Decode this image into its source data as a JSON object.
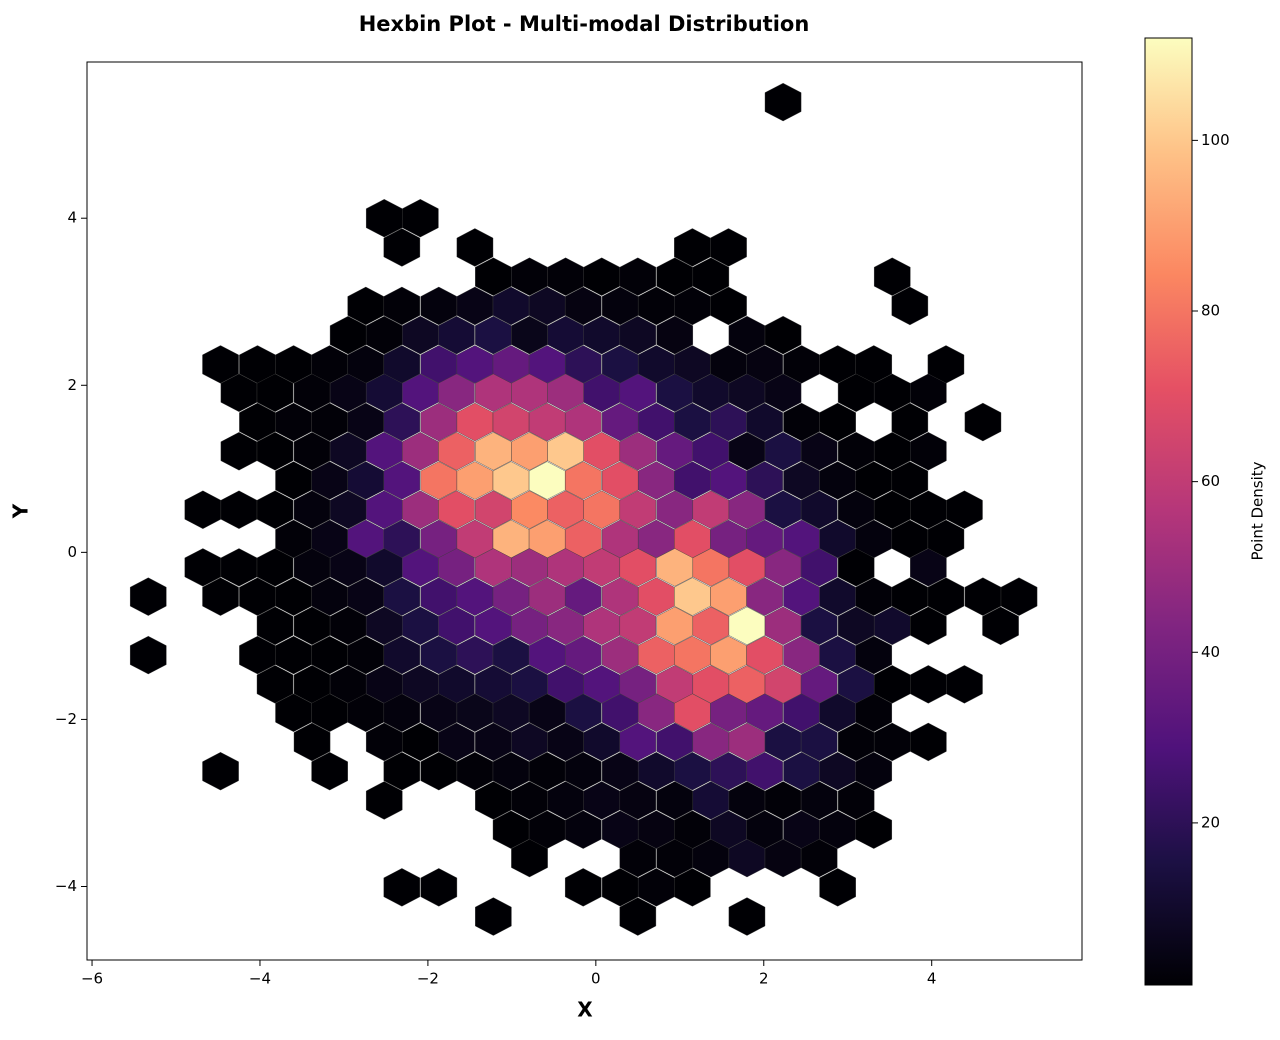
{
  "chart_data": {
    "type": "hexbin",
    "title": "Hexbin Plot - Multi-modal Distribution",
    "x_label": "X",
    "y_label": "Y",
    "colormap": "magma",
    "colorbar_label": "Point Density",
    "clim": [
      1,
      112
    ],
    "colorbar_ticks": [
      20,
      40,
      60,
      80,
      100
    ],
    "xlim": [
      -6.06,
      5.79
    ],
    "ylim": [
      -4.88,
      5.87
    ],
    "xticks": [
      {
        "value": -6,
        "label": "−6"
      },
      {
        "value": -4,
        "label": "−4"
      },
      {
        "value": -2,
        "label": "−2"
      },
      0,
      2,
      4
    ],
    "yticks": [
      {
        "value": -4,
        "label": "−4"
      },
      {
        "value": -2,
        "label": "−2"
      },
      0,
      2,
      4
    ],
    "rows": [
      {
        "y": 5.39,
        "x": [
          2.23
        ],
        "values": [
          1
        ]
      },
      {
        "y": 4.0,
        "x": [
          -2.52,
          -2.09
        ],
        "values": [
          1,
          1
        ]
      },
      {
        "y": 3.65,
        "x": [
          -2.31,
          -1.44,
          1.15,
          1.58
        ],
        "values": [
          1,
          1,
          1,
          1
        ]
      },
      {
        "y": 3.3,
        "x": [
          -1.22,
          -0.79,
          -0.36,
          0.07,
          0.5,
          0.94,
          1.37,
          3.53
        ],
        "values": [
          1,
          2,
          2,
          1,
          2,
          1,
          1,
          1
        ]
      },
      {
        "y": 2.95,
        "x": [
          -2.74,
          -2.31,
          -1.87,
          -1.44,
          -1.01,
          -0.58,
          -0.15,
          0.29,
          0.72,
          1.15,
          1.58,
          3.74
        ],
        "values": [
          1,
          2,
          3,
          5,
          10,
          8,
          4,
          3,
          2,
          2,
          1,
          1
        ]
      },
      {
        "y": 2.6,
        "x": [
          -2.95,
          -2.52,
          -2.09,
          -1.66,
          -1.22,
          -0.79,
          -0.36,
          0.07,
          0.5,
          0.94,
          1.8,
          2.23
        ],
        "values": [
          1,
          2,
          8,
          12,
          15,
          6,
          12,
          10,
          8,
          4,
          3,
          1
        ]
      },
      {
        "y": 2.25,
        "x": [
          -4.47,
          -4.03,
          -3.6,
          -3.17,
          -2.74,
          -2.31,
          -1.87,
          -1.44,
          -1.01,
          -0.58,
          -0.15,
          0.29,
          0.72,
          1.15,
          1.58,
          2.01,
          2.45,
          2.88,
          3.31,
          4.17
        ],
        "values": [
          1,
          1,
          1,
          2,
          3,
          10,
          25,
          30,
          35,
          30,
          20,
          15,
          10,
          8,
          3,
          4,
          2,
          1,
          1,
          1
        ]
      },
      {
        "y": 1.91,
        "x": [
          -4.25,
          -3.82,
          -3.38,
          -2.95,
          -2.52,
          -2.09,
          -1.66,
          -1.22,
          -0.79,
          -0.36,
          0.07,
          0.5,
          0.94,
          1.37,
          1.8,
          2.23,
          3.1,
          3.53,
          3.96
        ],
        "values": [
          1,
          1,
          2,
          5,
          12,
          30,
          45,
          55,
          55,
          50,
          25,
          30,
          15,
          10,
          8,
          5,
          1,
          1,
          2
        ]
      },
      {
        "y": 1.56,
        "x": [
          -4.03,
          -3.6,
          -3.17,
          -2.74,
          -2.31,
          -1.87,
          -1.44,
          -1.01,
          -0.58,
          -0.15,
          0.29,
          0.72,
          1.15,
          1.58,
          2.01,
          2.45,
          2.88,
          3.74,
          4.61
        ],
        "values": [
          1,
          2,
          2,
          5,
          20,
          50,
          70,
          65,
          60,
          55,
          35,
          25,
          15,
          20,
          10,
          2,
          1,
          1,
          1
        ]
      },
      {
        "y": 1.21,
        "x": [
          -4.25,
          -3.82,
          -3.38,
          -2.95,
          -2.52,
          -2.09,
          -1.66,
          -1.22,
          -0.79,
          -0.36,
          0.07,
          0.5,
          0.94,
          1.37,
          1.8,
          2.23,
          2.66,
          3.1,
          3.53,
          3.96
        ],
        "values": [
          1,
          1,
          2,
          8,
          30,
          50,
          75,
          95,
          90,
          100,
          70,
          50,
          35,
          25,
          5,
          15,
          5,
          2,
          1,
          2
        ]
      },
      {
        "y": 0.86,
        "x": [
          -3.6,
          -3.17,
          -2.74,
          -2.31,
          -1.87,
          -1.44,
          -1.01,
          -0.58,
          -0.15,
          0.29,
          0.72,
          1.15,
          1.58,
          2.01,
          2.45,
          2.88,
          3.31,
          3.74
        ],
        "values": [
          1,
          5,
          12,
          30,
          80,
          90,
          100,
          112,
          80,
          70,
          45,
          25,
          30,
          20,
          8,
          3,
          1,
          1
        ]
      },
      {
        "y": 0.51,
        "x": [
          -4.68,
          -4.25,
          -3.82,
          -3.38,
          -2.95,
          -2.52,
          -2.09,
          -1.66,
          -1.22,
          -0.79,
          -0.36,
          0.07,
          0.5,
          0.94,
          1.37,
          1.8,
          2.23,
          2.66,
          3.1,
          3.53,
          3.96,
          4.39
        ],
        "values": [
          1,
          1,
          1,
          3,
          8,
          30,
          50,
          70,
          65,
          85,
          75,
          80,
          60,
          45,
          60,
          45,
          15,
          10,
          3,
          1,
          1,
          1
        ]
      },
      {
        "y": 0.16,
        "x": [
          -3.6,
          -3.17,
          -2.74,
          -2.31,
          -1.87,
          -1.44,
          -1.01,
          -0.58,
          -0.15,
          0.29,
          0.72,
          1.15,
          1.58,
          2.01,
          2.45,
          2.88,
          3.31,
          3.74,
          4.17
        ],
        "values": [
          2,
          5,
          30,
          20,
          40,
          60,
          95,
          90,
          75,
          55,
          45,
          70,
          40,
          35,
          30,
          10,
          3,
          1,
          1
        ]
      },
      {
        "y": -0.18,
        "x": [
          -4.68,
          -4.25,
          -3.82,
          -3.38,
          -2.95,
          -2.52,
          -2.09,
          -1.66,
          -1.22,
          -0.79,
          -0.36,
          0.07,
          0.5,
          0.94,
          1.37,
          1.8,
          2.23,
          2.66,
          3.1,
          3.96
        ],
        "values": [
          1,
          1,
          1,
          3,
          5,
          10,
          30,
          40,
          55,
          50,
          55,
          60,
          70,
          95,
          80,
          70,
          45,
          25,
          1,
          5
        ]
      },
      {
        "y": -0.53,
        "x": [
          -5.33,
          -4.47,
          -4.03,
          -3.6,
          -3.17,
          -2.74,
          -2.31,
          -1.87,
          -1.44,
          -1.01,
          -0.58,
          -0.15,
          0.29,
          0.72,
          1.15,
          1.58,
          2.01,
          2.45,
          2.88,
          3.31,
          3.74,
          4.17,
          4.61,
          5.04
        ],
        "values": [
          1,
          1,
          1,
          1,
          3,
          5,
          15,
          25,
          30,
          40,
          50,
          35,
          55,
          70,
          100,
          90,
          45,
          30,
          10,
          2,
          1,
          1,
          1,
          1
        ]
      },
      {
        "y": -0.88,
        "x": [
          -3.82,
          -3.38,
          -2.95,
          -2.52,
          -2.09,
          -1.66,
          -1.22,
          -0.79,
          -0.36,
          0.07,
          0.5,
          0.94,
          1.37,
          1.8,
          2.23,
          2.66,
          3.1,
          3.53,
          3.96,
          4.82
        ],
        "values": [
          1,
          1,
          2,
          8,
          15,
          25,
          30,
          40,
          45,
          55,
          60,
          90,
          75,
          112,
          50,
          15,
          8,
          10,
          1,
          1
        ]
      },
      {
        "y": -1.23,
        "x": [
          -5.33,
          -4.03,
          -3.6,
          -3.17,
          -2.74,
          -2.31,
          -1.87,
          -1.44,
          -1.01,
          -0.58,
          -0.15,
          0.29,
          0.72,
          1.15,
          1.58,
          2.01,
          2.45,
          2.88,
          3.31
        ],
        "values": [
          1,
          1,
          1,
          1,
          2,
          10,
          15,
          20,
          15,
          30,
          35,
          50,
          75,
          80,
          90,
          70,
          45,
          15,
          3
        ]
      },
      {
        "y": -1.58,
        "x": [
          -3.82,
          -3.38,
          -2.95,
          -2.52,
          -2.09,
          -1.66,
          -1.22,
          -0.79,
          -0.36,
          0.07,
          0.5,
          0.94,
          1.37,
          1.8,
          2.23,
          2.66,
          3.1,
          3.53,
          3.96,
          4.39
        ],
        "values": [
          1,
          1,
          2,
          5,
          8,
          10,
          12,
          15,
          25,
          30,
          40,
          60,
          70,
          75,
          65,
          35,
          15,
          1,
          1,
          1
        ]
      },
      {
        "y": -1.92,
        "x": [
          -3.6,
          -3.17,
          -2.74,
          -2.31,
          -1.87,
          -1.44,
          -1.01,
          -0.58,
          -0.15,
          0.29,
          0.72,
          1.15,
          1.58,
          2.01,
          2.45,
          2.88,
          3.31
        ],
        "values": [
          1,
          1,
          2,
          3,
          5,
          6,
          8,
          5,
          15,
          25,
          45,
          70,
          40,
          35,
          25,
          10,
          2
        ]
      },
      {
        "y": -2.27,
        "x": [
          -3.38,
          -2.52,
          -2.09,
          -1.66,
          -1.22,
          -0.79,
          -0.36,
          0.07,
          0.5,
          0.94,
          1.37,
          1.8,
          2.23,
          2.66,
          3.1,
          3.53,
          3.96
        ],
        "values": [
          1,
          2,
          1,
          5,
          5,
          8,
          5,
          10,
          30,
          25,
          45,
          50,
          15,
          15,
          2,
          2,
          1
        ]
      },
      {
        "y": -2.62,
        "x": [
          -4.47,
          -3.17,
          -2.31,
          -1.87,
          -1.44,
          -1.01,
          -0.58,
          -0.15,
          0.29,
          0.72,
          1.15,
          1.58,
          2.01,
          2.45,
          2.88,
          3.31
        ],
        "values": [
          1,
          1,
          1,
          1,
          2,
          3,
          2,
          3,
          5,
          10,
          15,
          20,
          25,
          15,
          8,
          3
        ]
      },
      {
        "y": -2.97,
        "x": [
          -2.52,
          -1.22,
          -0.79,
          -0.36,
          0.07,
          0.5,
          0.94,
          1.37,
          1.8,
          2.23,
          2.66,
          3.1
        ],
        "values": [
          1,
          1,
          2,
          3,
          5,
          4,
          3,
          12,
          3,
          2,
          3,
          2
        ]
      },
      {
        "y": -3.32,
        "x": [
          -1.01,
          -0.58,
          -0.15,
          0.29,
          0.72,
          1.15,
          1.58,
          2.01,
          2.45,
          2.88,
          3.31
        ],
        "values": [
          1,
          2,
          3,
          5,
          4,
          2,
          8,
          3,
          5,
          3,
          1
        ]
      },
      {
        "y": -3.66,
        "x": [
          -0.79,
          0.5,
          0.94,
          1.37,
          1.8,
          2.23,
          2.66
        ],
        "values": [
          1,
          2,
          2,
          3,
          8,
          4,
          2
        ]
      },
      {
        "y": -4.01,
        "x": [
          -2.31,
          -1.87,
          -0.15,
          0.29,
          0.72,
          1.15,
          2.88
        ],
        "values": [
          1,
          1,
          1,
          1,
          2,
          1,
          1
        ]
      },
      {
        "y": -4.36,
        "x": [
          -1.22,
          0.5,
          1.8
        ],
        "values": [
          1,
          1,
          1
        ]
      }
    ]
  }
}
